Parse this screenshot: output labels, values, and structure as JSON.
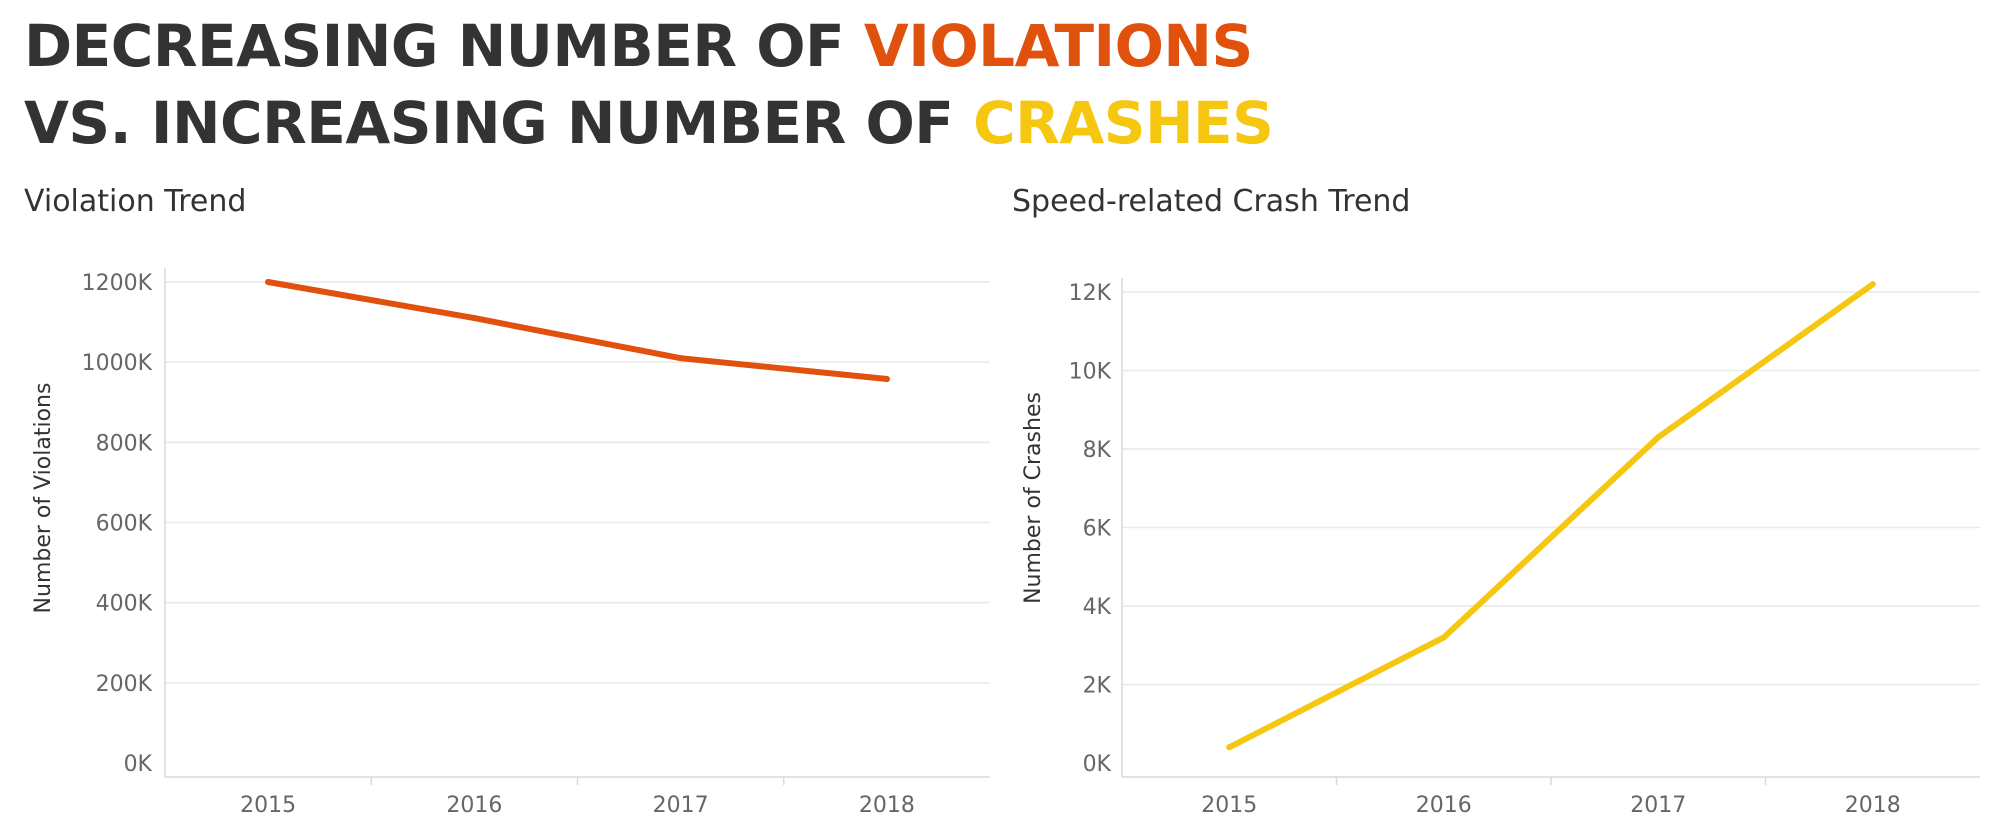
{
  "headline": {
    "line1_prefix": "DECREASING NUMBER OF ",
    "line1_highlight": "VIOLATIONS",
    "line2_prefix": "VS. INCREASING NUMBER OF ",
    "line2_highlight": "CRASHES"
  },
  "colors": {
    "text": "#333333",
    "violations": "#e0510d",
    "crashes": "#f5c710",
    "grid": "#e9e9e9",
    "axis": "#d9d9d9",
    "tick_label": "#666666"
  },
  "chart_data": [
    {
      "type": "line",
      "title": "Violation Trend",
      "ylabel": "Number of Violations",
      "xlabel": "",
      "categories": [
        "2015",
        "2016",
        "2017",
        "2018"
      ],
      "series": [
        {
          "values": [
            1200000,
            1110000,
            1010000,
            958000
          ]
        }
      ],
      "ylim": [
        0,
        1200000
      ],
      "yticks": [
        0,
        200000,
        400000,
        600000,
        800000,
        1000000,
        1200000
      ],
      "ytick_labels": [
        "0K",
        "200K",
        "400K",
        "600K",
        "800K",
        "1000K",
        "1200K"
      ],
      "grid": true,
      "legend": "none"
    },
    {
      "type": "line",
      "title": "Speed-related Crash Trend",
      "ylabel": "Number of Crashes",
      "xlabel": "",
      "categories": [
        "2015",
        "2016",
        "2017",
        "2018"
      ],
      "series": [
        {
          "values": [
            400,
            3200,
            8300,
            12200
          ]
        }
      ],
      "ylim": [
        0,
        12000
      ],
      "yticks": [
        0,
        2000,
        4000,
        6000,
        8000,
        10000,
        12000
      ],
      "ytick_labels": [
        "0K",
        "2K",
        "4K",
        "6K",
        "8K",
        "10K",
        "12K"
      ],
      "grid": true,
      "legend": "none"
    }
  ]
}
